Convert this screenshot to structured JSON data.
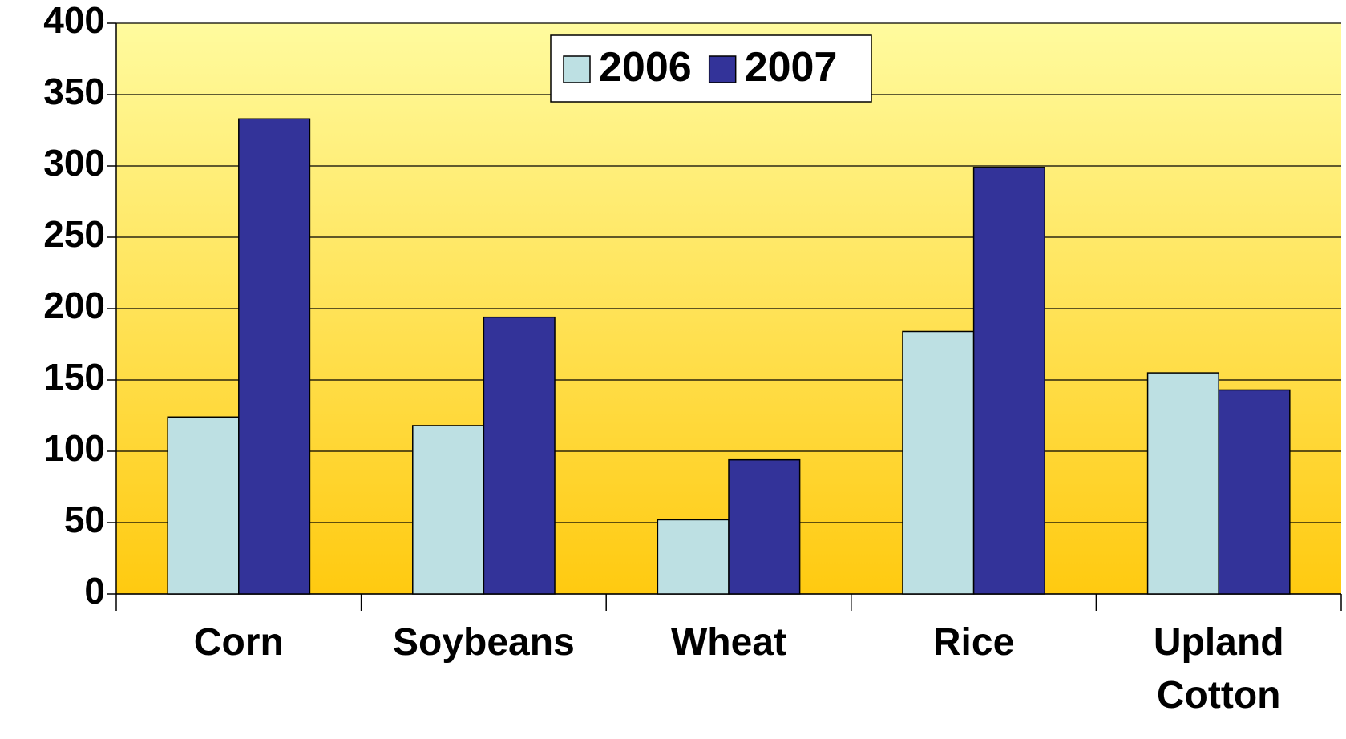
{
  "chart_data": {
    "type": "bar",
    "categories": [
      "Corn",
      "Soybeans",
      "Wheat",
      "Rice",
      "Upland Cotton"
    ],
    "series": [
      {
        "name": "2006",
        "color": "#BDE0E3",
        "values": [
          124,
          118,
          52,
          184,
          155
        ]
      },
      {
        "name": "2007",
        "color": "#333399",
        "values": [
          333,
          194,
          94,
          299,
          143
        ]
      }
    ],
    "ylim": [
      0,
      400
    ],
    "yticks": [
      0,
      50,
      100,
      150,
      200,
      250,
      300,
      350,
      400
    ],
    "grid": true,
    "legend": "top"
  }
}
